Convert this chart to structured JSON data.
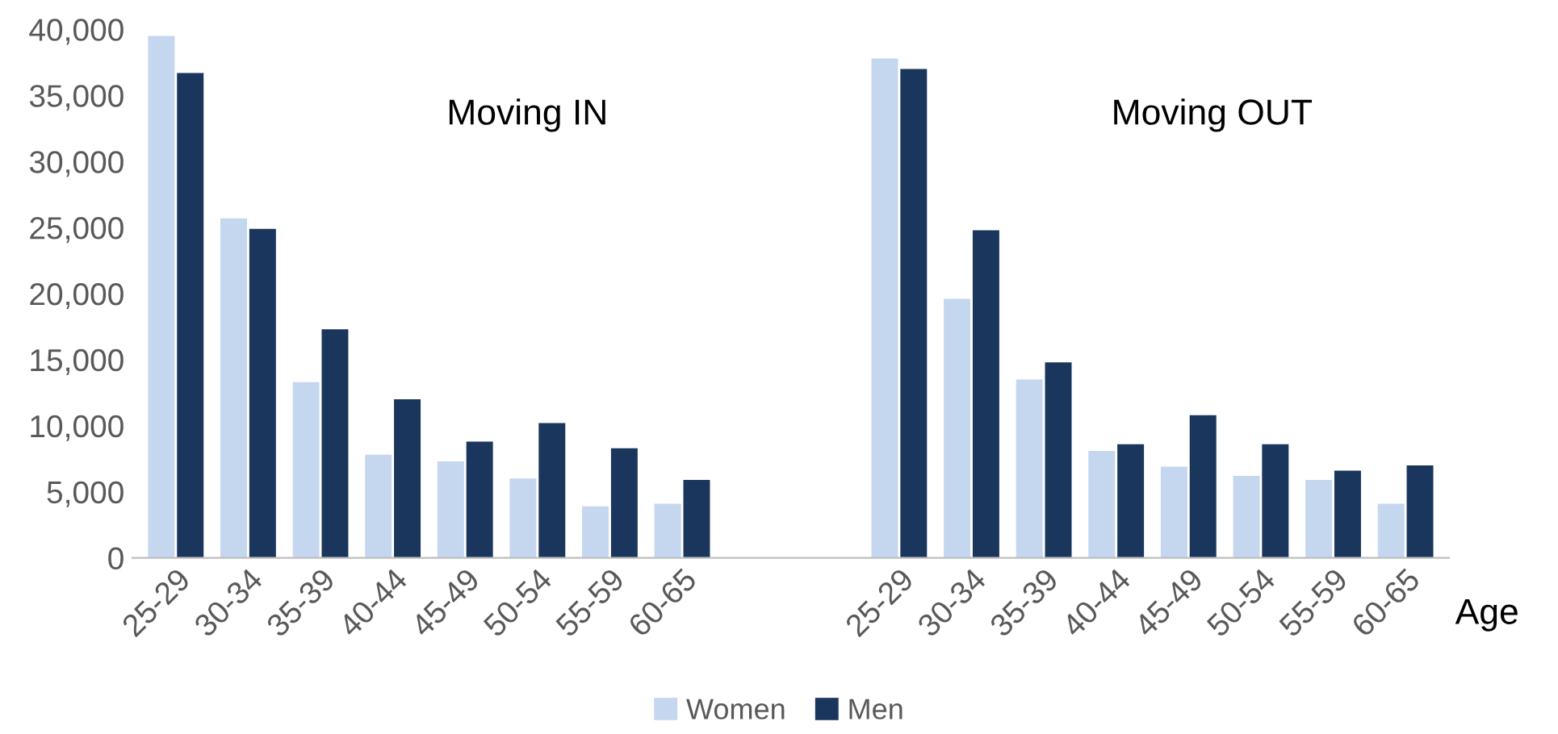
{
  "chart_data": {
    "type": "bar",
    "xlabel": "Age",
    "categories": [
      "25-29",
      "30-34",
      "35-39",
      "40-44",
      "45-49",
      "50-54",
      "55-59",
      "60-65",
      null,
      null,
      "25-29",
      "30-34",
      "35-39",
      "40-44",
      "45-49",
      "50-54",
      "55-59",
      "60-65"
    ],
    "series": [
      {
        "name": "Women",
        "color": "#c5d7ef",
        "values": [
          39500,
          25700,
          13300,
          7800,
          7300,
          6000,
          3900,
          4100,
          null,
          null,
          37800,
          19600,
          13500,
          8100,
          6900,
          6200,
          5900,
          4100
        ]
      },
      {
        "name": "Men",
        "color": "#1b365d",
        "values": [
          36700,
          24900,
          17300,
          12000,
          8800,
          10200,
          8300,
          5900,
          null,
          null,
          37000,
          24800,
          14800,
          8600,
          10800,
          8600,
          6600,
          7000
        ]
      }
    ],
    "ylim": [
      0,
      40000
    ],
    "yticks": [
      {
        "value": 0,
        "label": "0"
      },
      {
        "value": 5000,
        "label": "5,000"
      },
      {
        "value": 10000,
        "label": "10,000"
      },
      {
        "value": 15000,
        "label": "15,000"
      },
      {
        "value": 20000,
        "label": "20,000"
      },
      {
        "value": 25000,
        "label": "25,000"
      },
      {
        "value": 30000,
        "label": "30,000"
      },
      {
        "value": 35000,
        "label": "35,000"
      },
      {
        "value": 40000,
        "label": "40,000"
      }
    ],
    "annotations": [
      "Moving IN",
      "Moving OUT"
    ],
    "grid": false,
    "legend": "bottom"
  }
}
